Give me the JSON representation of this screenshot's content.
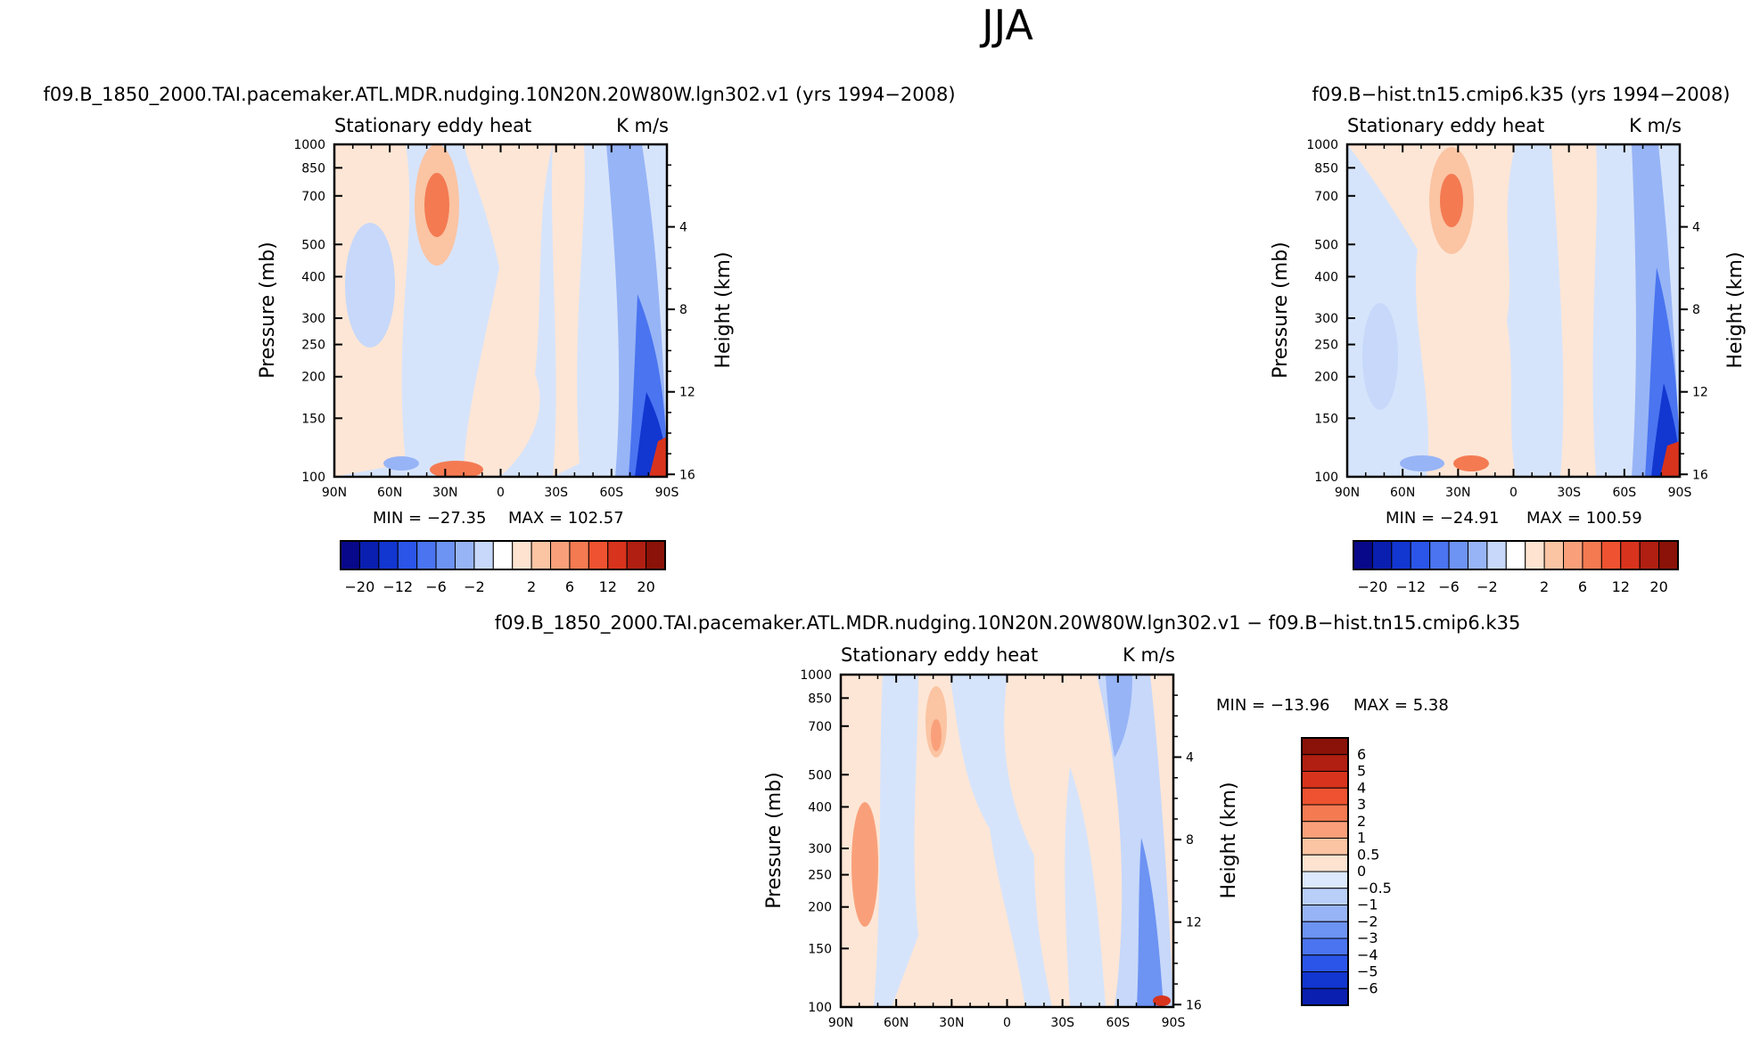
{
  "figure": {
    "title": "JJA",
    "panels": [
      {
        "id": "left",
        "title": "f09.B_1850_2000.TAI.pacemaker.ATL.MDR.nudging.10N20N.20W80W.lgn302.v1  (yrs 1994−2008)",
        "var_label": "Stationary  eddy  heat",
        "units": "K  m/s",
        "ylabel": "Pressure  (mb)",
        "y2label": "Height  (km)",
        "min_label": "MIN  =  −27.35",
        "max_label": "MAX  =  102.57"
      },
      {
        "id": "right",
        "title": "f09.B−hist.tn15.cmip6.k35  (yrs 1994−2008)",
        "var_label": "Stationary  eddy  heat",
        "units": "K  m/s",
        "ylabel": "Pressure  (mb)",
        "y2label": "Height  (km)",
        "min_label": "MIN  =  −24.91",
        "max_label": "MAX  =  100.59"
      },
      {
        "id": "diff",
        "title": "f09.B_1850_2000.TAI.pacemaker.ATL.MDR.nudging.10N20N.20W80W.lgn302.v1  −  f09.B−hist.tn15.cmip6.k35",
        "var_label": "Stationary  eddy  heat",
        "units": "K  m/s",
        "ylabel": "Pressure  (mb)",
        "y2label": "Height  (km)",
        "min_label": "MIN  =  −13.96",
        "max_label": "MAX  =     5.38"
      }
    ]
  },
  "chart_data": [
    {
      "type": "heatmap",
      "name": "left",
      "title": "f09.B_1850_2000.TAI.pacemaker.ATL.MDR.nudging.10N20N.20W80W.lgn302.v1  (yrs 1994−2008)",
      "x_ticks": [
        "90N",
        "60N",
        "30N",
        "0",
        "30S",
        "60S",
        "90S"
      ],
      "x_values": [
        90,
        60,
        30,
        0,
        -30,
        -60,
        -90
      ],
      "y_ticks": [
        "100",
        "150",
        "200",
        "250",
        "300",
        "400",
        "500",
        "700",
        "850",
        "1000"
      ],
      "y_values": [
        100,
        150,
        200,
        250,
        300,
        400,
        500,
        700,
        850,
        1000
      ],
      "y2_ticks": [
        "16",
        "12",
        "8",
        "4"
      ],
      "y2_values": [
        16,
        12,
        8,
        4
      ],
      "ylim": [
        1000,
        100
      ],
      "xlim": [
        90,
        -90
      ],
      "min": -27.35,
      "max": 102.57,
      "colorbar_labels": [
        "−20",
        "−12",
        "−6",
        "−2",
        "2",
        "6",
        "12",
        "20"
      ],
      "levels": [
        -20,
        -16,
        -12,
        -8,
        -6,
        -4,
        -2,
        -1,
        0,
        1,
        2,
        4,
        6,
        8,
        12,
        16,
        20
      ]
    },
    {
      "type": "heatmap",
      "name": "right",
      "title": "f09.B−hist.tn15.cmip6.k35  (yrs 1994−2008)",
      "x_ticks": [
        "90N",
        "60N",
        "30N",
        "0",
        "30S",
        "60S",
        "90S"
      ],
      "x_values": [
        90,
        60,
        30,
        0,
        -30,
        -60,
        -90
      ],
      "y_ticks": [
        "100",
        "150",
        "200",
        "250",
        "300",
        "400",
        "500",
        "700",
        "850",
        "1000"
      ],
      "y_values": [
        100,
        150,
        200,
        250,
        300,
        400,
        500,
        700,
        850,
        1000
      ],
      "y2_ticks": [
        "16",
        "12",
        "8",
        "4"
      ],
      "y2_values": [
        16,
        12,
        8,
        4
      ],
      "ylim": [
        1000,
        100
      ],
      "xlim": [
        90,
        -90
      ],
      "min": -24.91,
      "max": 100.59,
      "colorbar_labels": [
        "−20",
        "−12",
        "−6",
        "−2",
        "2",
        "6",
        "12",
        "20"
      ],
      "levels": [
        -20,
        -16,
        -12,
        -8,
        -6,
        -4,
        -2,
        -1,
        0,
        1,
        2,
        4,
        6,
        8,
        12,
        16,
        20
      ]
    },
    {
      "type": "heatmap",
      "name": "diff",
      "title": "f09.B_1850_2000.TAI.pacemaker.ATL.MDR.nudging.10N20N.20W80W.lgn302.v1  −  f09.B−hist.tn15.cmip6.k35",
      "x_ticks": [
        "90N",
        "60N",
        "30N",
        "0",
        "30S",
        "60S",
        "90S"
      ],
      "x_values": [
        90,
        60,
        30,
        0,
        -30,
        -60,
        -90
      ],
      "y_ticks": [
        "100",
        "150",
        "200",
        "250",
        "300",
        "400",
        "500",
        "700",
        "850",
        "1000"
      ],
      "y_values": [
        100,
        150,
        200,
        250,
        300,
        400,
        500,
        700,
        850,
        1000
      ],
      "y2_ticks": [
        "16",
        "12",
        "8",
        "4"
      ],
      "y2_values": [
        16,
        12,
        8,
        4
      ],
      "ylim": [
        1000,
        100
      ],
      "xlim": [
        90,
        -90
      ],
      "min": -13.96,
      "max": 5.38,
      "colorbar_labels": [
        "6",
        "5",
        "4",
        "3",
        "2",
        "1",
        "0.5",
        "0",
        "−0.5",
        "−1",
        "−2",
        "−3",
        "−4",
        "−5",
        "−6"
      ],
      "levels": [
        -6,
        -5,
        -4,
        -3,
        -2,
        -1,
        -0.5,
        0,
        0.5,
        1,
        2,
        3,
        4,
        5,
        6
      ]
    }
  ],
  "colors": {
    "palette_17": [
      "#08088a",
      "#0a1fb0",
      "#1236d0",
      "#2b55e8",
      "#4a74f0",
      "#6d93f3",
      "#97b4f6",
      "#c7d8fa",
      "#ffffff",
      "#fde3d0",
      "#fbc4a3",
      "#f9a07a",
      "#f47a52",
      "#ee5230",
      "#d8331d",
      "#b01f12",
      "#8a1208"
    ],
    "palette_16_diff": [
      "#8a1208",
      "#b01f12",
      "#d8331d",
      "#ee5230",
      "#f47a52",
      "#f9a07a",
      "#fbc4a3",
      "#fde3d0",
      "#dce8fb",
      "#b9cff8",
      "#97b4f6",
      "#6d93f3",
      "#4a74f0",
      "#2b55e8",
      "#1236d0",
      "#0a1fb0"
    ],
    "bg_blue": "#d6e4fb",
    "bg_peach": "#fde6d6"
  }
}
